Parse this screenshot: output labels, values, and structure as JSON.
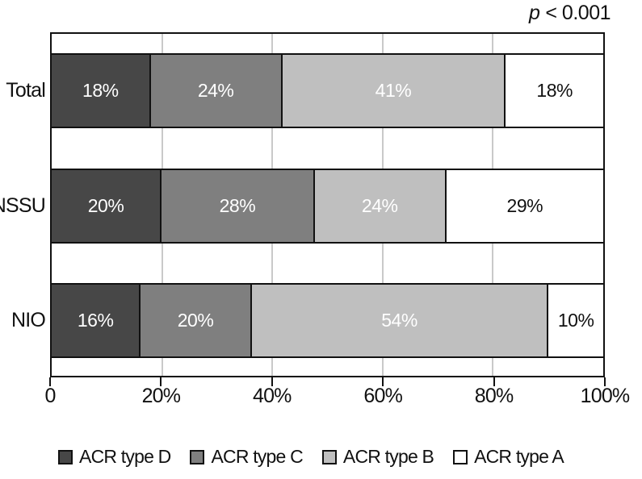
{
  "annotation": {
    "stat_label": "p",
    "stat_value": "< 0.001"
  },
  "chart_data": {
    "type": "bar",
    "orientation": "horizontal",
    "stacked": true,
    "annotation": "p < 0.001",
    "categories": [
      "Total",
      "NSSU",
      "NIO"
    ],
    "series": [
      {
        "name": "ACR type D",
        "color": "#474747",
        "values": [
          18,
          20,
          16
        ]
      },
      {
        "name": "ACR type C",
        "color": "#7f7f7f",
        "values": [
          24,
          28,
          20
        ]
      },
      {
        "name": "ACR type B",
        "color": "#bfbfbf",
        "values": [
          41,
          24,
          54
        ]
      },
      {
        "name": "ACR type A",
        "color": "#ffffff",
        "values": [
          18,
          29,
          10
        ]
      }
    ],
    "value_label_suffix": "%",
    "x_ticks": [
      "0",
      "20%",
      "40%",
      "60%",
      "80%",
      "100%"
    ],
    "xlim": [
      0,
      100
    ],
    "grid": true,
    "grid_color": "#c9c9c9",
    "border_color": "#111111",
    "legend_position": "bottom"
  }
}
